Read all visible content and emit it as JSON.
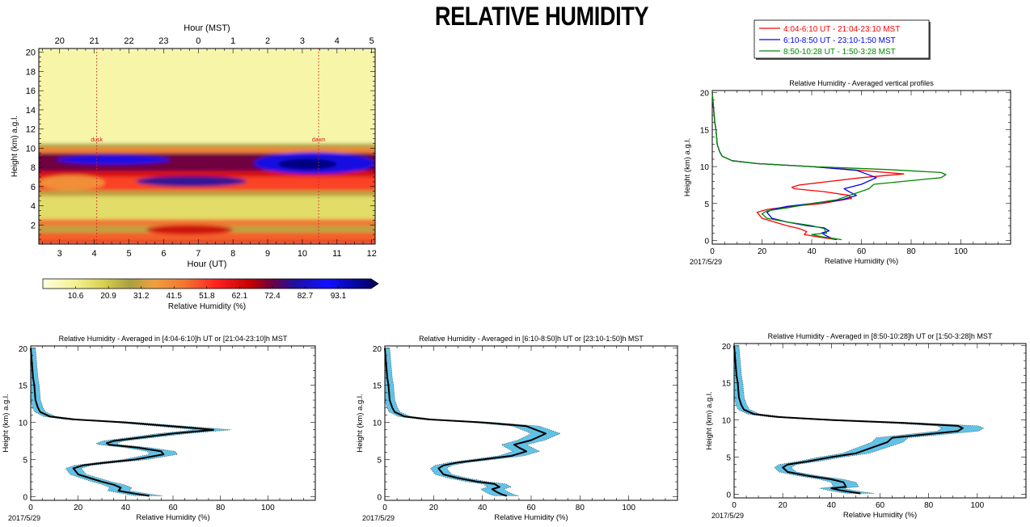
{
  "page_title": "RELATIVE HUMIDITY",
  "date_label": "2017/5/29",
  "colors": {
    "red": "#ff0000",
    "blue": "#0000ee",
    "green": "#008800",
    "band": "#62c2e6",
    "black": "#000000"
  },
  "chart_data": [
    {
      "type": "heatmap",
      "top_axis_label": "Hour (MST)",
      "top_ticks": [
        "20",
        "21",
        "22",
        "23",
        "0",
        "1",
        "2",
        "3",
        "4",
        "5"
      ],
      "xlabel": "Hour (UT)",
      "x_ticks": [
        "3",
        "4",
        "5",
        "6",
        "7",
        "8",
        "9",
        "10",
        "11",
        "12"
      ],
      "xlim": [
        2.4,
        12.1
      ],
      "ylabel": "Height (km) a.g.l.",
      "y_ticks": [
        "2",
        "4",
        "6",
        "8",
        "10",
        "12",
        "14",
        "16",
        "18",
        "20"
      ],
      "ylim": [
        0,
        20.4
      ],
      "annotations": [
        {
          "text": "dusk",
          "x": 4.07
        },
        {
          "text": "dawn",
          "x": 10.47
        }
      ],
      "layers": [
        {
          "y0": 0,
          "y1": 0.3,
          "level": 60
        },
        {
          "y0": 0.3,
          "y1": 1.2,
          "level": 45
        },
        {
          "y0": 1.2,
          "y1": 1.9,
          "level": 28
        },
        {
          "y0": 1.9,
          "y1": 2.6,
          "level": 42
        },
        {
          "y0": 2.6,
          "y1": 5.0,
          "level": 15
        },
        {
          "y0": 5.0,
          "y1": 5.6,
          "level": 28
        },
        {
          "y0": 5.6,
          "y1": 7.0,
          "level": 48
        },
        {
          "y0": 7.0,
          "y1": 7.6,
          "level": 58
        },
        {
          "y0": 7.6,
          "y1": 9.5,
          "level": 68
        },
        {
          "y0": 9.5,
          "y1": 10.1,
          "level": 40
        },
        {
          "y0": 10.1,
          "y1": 10.5,
          "level": 25
        },
        {
          "y0": 10.5,
          "y1": 20.4,
          "level": 7
        }
      ],
      "blobs": [
        {
          "x0": 2.9,
          "x1": 6.2,
          "y0": 8.3,
          "y1": 9.3,
          "level": 84
        },
        {
          "x0": 8.6,
          "x1": 12.1,
          "y0": 7.3,
          "y1": 9.6,
          "level": 86
        },
        {
          "x0": 9.3,
          "x1": 11.0,
          "y0": 7.8,
          "y1": 8.9,
          "level": 97
        },
        {
          "x0": 5.2,
          "x1": 8.4,
          "y0": 6.0,
          "y1": 7.1,
          "level": 75
        },
        {
          "x0": 2.4,
          "x1": 4.3,
          "y0": 5.6,
          "y1": 7.2,
          "level": 35
        },
        {
          "x0": 5.5,
          "x1": 8.0,
          "y0": 1.0,
          "y1": 2.0,
          "level": 60
        }
      ],
      "colorbar": {
        "ticks": [
          "10.6",
          "20.9",
          "31.2",
          "41.5",
          "51.8",
          "62.1",
          "72.4",
          "82.7",
          "93.1"
        ],
        "label": "Relative Humidity (%)",
        "range": [
          0.3,
          103.4
        ]
      }
    },
    {
      "type": "line",
      "title": "Relative Humidity - Averaged vertical profiles",
      "xlabel": "Relative Humidity (%)",
      "ylabel": "Height (km) a.g.l.",
      "xlim": [
        0,
        120
      ],
      "ylim": [
        -0.5,
        20.3
      ],
      "x_ticks": [
        "0",
        "20",
        "40",
        "60",
        "80",
        "100"
      ],
      "y_ticks": [
        "0",
        "5",
        "10",
        "15",
        "20"
      ],
      "legend_position": "top",
      "series": [
        {
          "name": "4:04-6:10 UT - 21:04-23:10 MST",
          "color": "#ff0000",
          "points": [
            [
              0,
              20
            ],
            [
              0.5,
              18
            ],
            [
              1,
              16
            ],
            [
              1.5,
              15
            ],
            [
              2,
              13
            ],
            [
              3,
              12
            ],
            [
              4,
              11.4
            ],
            [
              8,
              10.8
            ],
            [
              18,
              10.4
            ],
            [
              40,
              10.0
            ],
            [
              70,
              9.2
            ],
            [
              77,
              9.0
            ],
            [
              60,
              8.5
            ],
            [
              35,
              7.5
            ],
            [
              32,
              7.2
            ],
            [
              33,
              7.0
            ],
            [
              45,
              6.6
            ],
            [
              55,
              6.1
            ],
            [
              56,
              5.7
            ],
            [
              44,
              5.0
            ],
            [
              32,
              4.6
            ],
            [
              22,
              4.2
            ],
            [
              18,
              3.8
            ],
            [
              20,
              3.0
            ],
            [
              25,
              2.5
            ],
            [
              30,
              2.0
            ],
            [
              35,
              1.6
            ],
            [
              38,
              1.2
            ],
            [
              37,
              0.8
            ],
            [
              42,
              0.5
            ],
            [
              46,
              0.3
            ],
            [
              50,
              0.1
            ]
          ]
        },
        {
          "name": "6:10-8:50 UT - 23:10-1:50 MST",
          "color": "#0000ee",
          "points": [
            [
              0,
              20
            ],
            [
              0.5,
              18
            ],
            [
              1,
              16
            ],
            [
              1.5,
              15
            ],
            [
              2,
              13
            ],
            [
              3,
              12
            ],
            [
              4,
              11.4
            ],
            [
              8,
              10.8
            ],
            [
              18,
              10.4
            ],
            [
              40,
              10.0
            ],
            [
              58,
              9.5
            ],
            [
              62,
              9.0
            ],
            [
              66,
              8.5
            ],
            [
              60,
              7.6
            ],
            [
              53,
              7.0
            ],
            [
              55,
              6.6
            ],
            [
              58,
              6.1
            ],
            [
              52,
              5.5
            ],
            [
              40,
              5.0
            ],
            [
              30,
              4.6
            ],
            [
              24,
              4.2
            ],
            [
              22,
              3.8
            ],
            [
              24,
              3.0
            ],
            [
              30,
              2.5
            ],
            [
              38,
              2.0
            ],
            [
              45,
              1.7
            ],
            [
              47,
              1.3
            ],
            [
              44,
              1.0
            ],
            [
              46,
              0.6
            ],
            [
              48,
              0.3
            ],
            [
              50,
              0.1
            ]
          ]
        },
        {
          "name": "8:50-10:28 UT - 1:50-3:28 MST",
          "color": "#008800",
          "points": [
            [
              0,
              20
            ],
            [
              0.5,
              18
            ],
            [
              1,
              16
            ],
            [
              1.5,
              15
            ],
            [
              2,
              13
            ],
            [
              3,
              12
            ],
            [
              4,
              11.4
            ],
            [
              8,
              10.8
            ],
            [
              18,
              10.4
            ],
            [
              40,
              10.0
            ],
            [
              70,
              9.6
            ],
            [
              92,
              9.2
            ],
            [
              94,
              8.9
            ],
            [
              92,
              8.5
            ],
            [
              65,
              7.6
            ],
            [
              63,
              7.0
            ],
            [
              50,
              5.5
            ],
            [
              40,
              5.0
            ],
            [
              30,
              4.4
            ],
            [
              22,
              4.0
            ],
            [
              20,
              3.6
            ],
            [
              22,
              3.0
            ],
            [
              30,
              2.5
            ],
            [
              40,
              2.0
            ],
            [
              45,
              1.6
            ],
            [
              46,
              1.0
            ],
            [
              40,
              0.8
            ],
            [
              44,
              0.5
            ],
            [
              48,
              0.3
            ],
            [
              52,
              0.1
            ]
          ]
        }
      ]
    },
    {
      "type": "line",
      "title": "Relative Humidity - Averaged in [4:04-6:10]h UT or [21:04-23:10]h MST",
      "xlabel": "Relative Humidity (%)",
      "ylabel": "Height (km) a.g.l.",
      "xlim": [
        0,
        120
      ],
      "ylim": [
        -0.5,
        20.3
      ],
      "x_ticks": [
        "0",
        "20",
        "40",
        "60",
        "80",
        "100"
      ],
      "y_ticks": [
        "0",
        "5",
        "10",
        "15",
        "20"
      ],
      "band_spread": [
        2,
        7
      ],
      "series": [
        {
          "color": "#000000",
          "points": [
            [
              0,
              20
            ],
            [
              0.5,
              18
            ],
            [
              1,
              16
            ],
            [
              1.5,
              15
            ],
            [
              2,
              13
            ],
            [
              3,
              12
            ],
            [
              4,
              11.4
            ],
            [
              8,
              10.8
            ],
            [
              18,
              10.4
            ],
            [
              40,
              10.0
            ],
            [
              70,
              9.2
            ],
            [
              77,
              9.0
            ],
            [
              60,
              8.5
            ],
            [
              35,
              7.5
            ],
            [
              32,
              7.2
            ],
            [
              33,
              7.0
            ],
            [
              45,
              6.6
            ],
            [
              55,
              6.1
            ],
            [
              56,
              5.7
            ],
            [
              44,
              5.0
            ],
            [
              32,
              4.6
            ],
            [
              22,
              4.2
            ],
            [
              18,
              3.8
            ],
            [
              20,
              3.0
            ],
            [
              25,
              2.5
            ],
            [
              30,
              2.0
            ],
            [
              35,
              1.6
            ],
            [
              38,
              1.2
            ],
            [
              37,
              0.8
            ],
            [
              42,
              0.5
            ],
            [
              46,
              0.3
            ],
            [
              50,
              0.1
            ]
          ]
        }
      ]
    },
    {
      "type": "line",
      "title": "Relative Humidity - Averaged in [6:10-8:50]h UT or [23:10-1:50]h MST",
      "xlabel": "Relative Humidity (%)",
      "ylabel": "Height (km) a.g.l.",
      "xlim": [
        0,
        120
      ],
      "ylim": [
        -0.5,
        20.3
      ],
      "x_ticks": [
        "0",
        "20",
        "40",
        "60",
        "80",
        "100"
      ],
      "y_ticks": [
        "0",
        "5",
        "10",
        "15",
        "20"
      ],
      "band_spread": [
        2,
        6
      ],
      "series": [
        {
          "color": "#000000",
          "points": [
            [
              0,
              20
            ],
            [
              0.5,
              18
            ],
            [
              1,
              16
            ],
            [
              1.5,
              15
            ],
            [
              2,
              13
            ],
            [
              3,
              12
            ],
            [
              4,
              11.4
            ],
            [
              8,
              10.8
            ],
            [
              18,
              10.4
            ],
            [
              40,
              10.0
            ],
            [
              58,
              9.5
            ],
            [
              62,
              9.0
            ],
            [
              66,
              8.5
            ],
            [
              60,
              7.6
            ],
            [
              53,
              7.0
            ],
            [
              55,
              6.6
            ],
            [
              58,
              6.1
            ],
            [
              52,
              5.5
            ],
            [
              40,
              5.0
            ],
            [
              30,
              4.6
            ],
            [
              24,
              4.2
            ],
            [
              22,
              3.8
            ],
            [
              24,
              3.0
            ],
            [
              30,
              2.5
            ],
            [
              38,
              2.0
            ],
            [
              45,
              1.7
            ],
            [
              47,
              1.3
            ],
            [
              44,
              1.0
            ],
            [
              46,
              0.6
            ],
            [
              48,
              0.3
            ],
            [
              50,
              0.1
            ]
          ]
        }
      ]
    },
    {
      "type": "line",
      "title": "Relative Humidity - Averaged in [8:50-10:28]h UT or [1:50-3:28]h MST",
      "xlabel": "Relative Humidity (%)",
      "ylabel": "Height (km) a.g.l.",
      "xlim": [
        0,
        120
      ],
      "ylim": [
        -0.5,
        20.3
      ],
      "x_ticks": [
        "0",
        "20",
        "40",
        "60",
        "80",
        "100"
      ],
      "y_ticks": [
        "0",
        "5",
        "10",
        "15",
        "20"
      ],
      "band_spread": [
        2,
        7
      ],
      "series": [
        {
          "color": "#000000",
          "points": [
            [
              0,
              20
            ],
            [
              0.5,
              18
            ],
            [
              1,
              16
            ],
            [
              1.5,
              15
            ],
            [
              2,
              13
            ],
            [
              3,
              12
            ],
            [
              4,
              11.4
            ],
            [
              8,
              10.8
            ],
            [
              18,
              10.4
            ],
            [
              40,
              10.0
            ],
            [
              70,
              9.6
            ],
            [
              92,
              9.2
            ],
            [
              94,
              8.9
            ],
            [
              92,
              8.5
            ],
            [
              65,
              7.6
            ],
            [
              63,
              7.0
            ],
            [
              50,
              5.5
            ],
            [
              40,
              5.0
            ],
            [
              30,
              4.4
            ],
            [
              22,
              4.0
            ],
            [
              20,
              3.6
            ],
            [
              22,
              3.0
            ],
            [
              30,
              2.5
            ],
            [
              40,
              2.0
            ],
            [
              45,
              1.6
            ],
            [
              46,
              1.0
            ],
            [
              40,
              0.8
            ],
            [
              44,
              0.5
            ],
            [
              48,
              0.3
            ],
            [
              52,
              0.1
            ]
          ]
        }
      ]
    }
  ]
}
